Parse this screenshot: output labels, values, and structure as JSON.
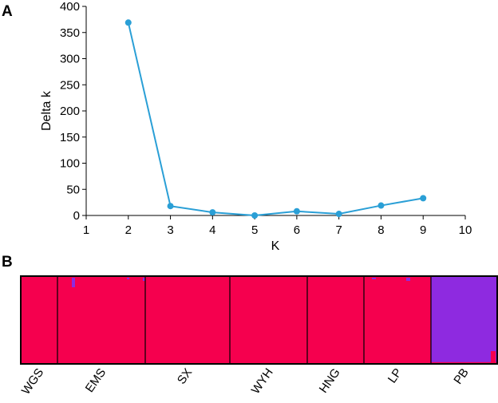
{
  "panel_a_label": "A",
  "panel_b_label": "B",
  "chart_data": [
    {
      "type": "line",
      "xlabel": "K",
      "ylabel": "Delta k",
      "xlim": [
        1,
        10
      ],
      "ylim": [
        0,
        400
      ],
      "xticks": [
        1,
        2,
        3,
        4,
        5,
        6,
        7,
        8,
        9,
        10
      ],
      "yticks": [
        0,
        50,
        100,
        150,
        200,
        250,
        300,
        350,
        400
      ],
      "grid": false,
      "series": [
        {
          "color": "#2a9fd6",
          "x": [
            2,
            3,
            4,
            5,
            6,
            7,
            8,
            9
          ],
          "y": [
            369,
            18,
            6,
            0,
            8,
            3,
            19,
            33
          ]
        }
      ]
    },
    {
      "type": "bar",
      "subtype": "stacked-admixture",
      "categories": [
        "WGS",
        "EMS",
        "SX",
        "WYH",
        "HNG",
        "LP",
        "PB"
      ],
      "cluster_colors": [
        "#f5004e",
        "#8e2ae0"
      ],
      "membership": [
        [
          1.0,
          0.0
        ],
        [
          0.99,
          0.01
        ],
        [
          1.0,
          0.0
        ],
        [
          1.0,
          0.0
        ],
        [
          1.0,
          0.0
        ],
        [
          0.99,
          0.01
        ],
        [
          0.02,
          0.98
        ]
      ]
    }
  ]
}
